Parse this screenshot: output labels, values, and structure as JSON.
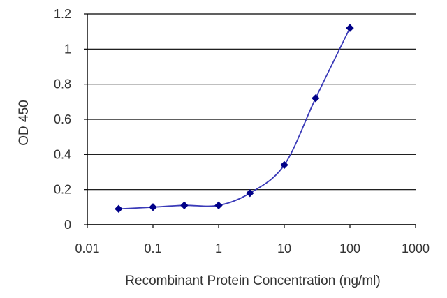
{
  "chart_data": {
    "type": "line",
    "xlabel": "Recombinant Protein Concentration (ng/ml)",
    "ylabel": "OD 450",
    "x_scale": "log",
    "xlim": [
      0.01,
      1000
    ],
    "ylim": [
      0,
      1.2
    ],
    "x_ticks": [
      "0.01",
      "0.1",
      "1",
      "10",
      "100",
      "1000"
    ],
    "y_ticks": [
      "0",
      "0.2",
      "0.4",
      "0.6",
      "0.8",
      "1",
      "1.2"
    ],
    "grid": "horizontal",
    "legend": "none",
    "series": [
      {
        "x": [
          0.03,
          0.1,
          0.3,
          1,
          3,
          10,
          30,
          100
        ],
        "y": [
          0.09,
          0.1,
          0.11,
          0.11,
          0.18,
          0.34,
          0.72,
          1.12
        ],
        "color": "#3a3ab8",
        "marker": "diamond",
        "marker_color": "#000088"
      }
    ]
  }
}
